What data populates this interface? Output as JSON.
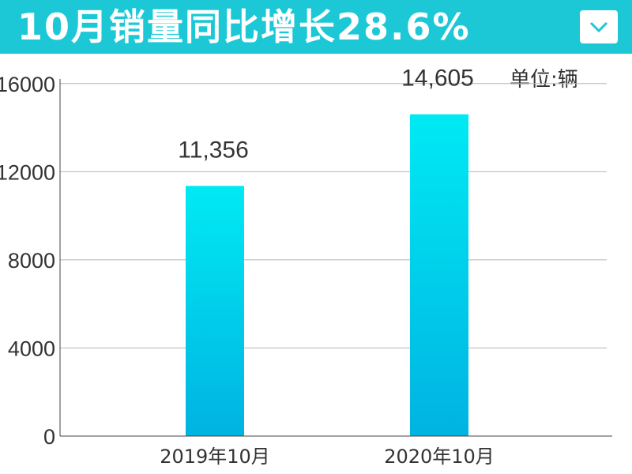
{
  "header": {
    "title": "10月销量同比增长28.6%",
    "dropdown_icon": "chevron-down-icon"
  },
  "unit_label": "单位:辆",
  "colors": {
    "banner": "#1cc8d6",
    "bar_top": "#00eaf3",
    "bar_bottom": "#00b3e2",
    "grid": "#b5b5b5",
    "axis": "#444444",
    "text": "#333333"
  },
  "chart_data": {
    "type": "bar",
    "title": "10月销量同比增长28.6%",
    "unit": "单位:辆",
    "categories": [
      "2019年10月",
      "2020年10月"
    ],
    "values": [
      11356,
      14605
    ],
    "value_labels": [
      "11,356",
      "14,605"
    ],
    "ylim": [
      0,
      18000
    ],
    "yticks": [
      0,
      4000,
      8000,
      12000,
      16000
    ],
    "ytick_labels": [
      "0",
      "4000",
      "8000",
      "12000",
      "16000"
    ],
    "grid": true,
    "legend": "none"
  }
}
